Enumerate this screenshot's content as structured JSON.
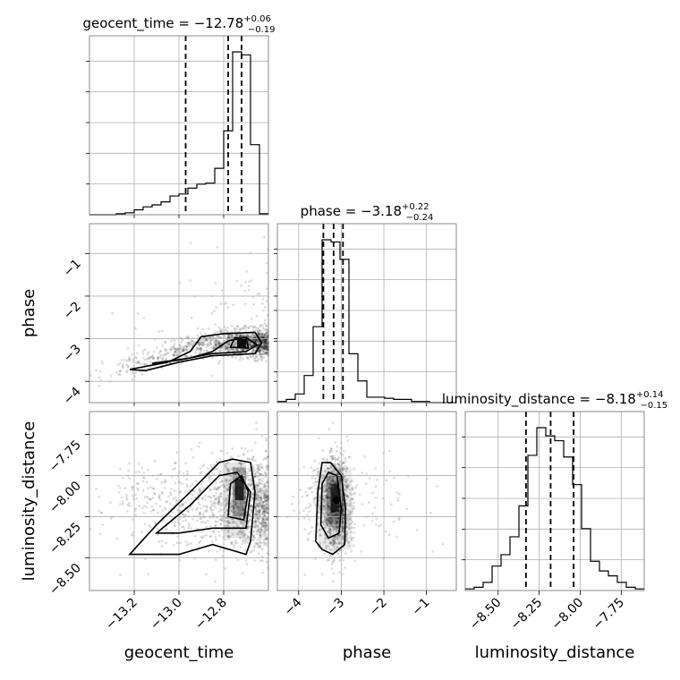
{
  "chart_data": {
    "type": "corner",
    "parameters": [
      "geocent_time",
      "phase",
      "luminosity_distance"
    ],
    "titles": [
      {
        "main": "geocent_time = −12.78",
        "sup": "+0.06",
        "sub": "−0.19"
      },
      {
        "main": "phase = −3.18",
        "sup": "+0.22",
        "sub": "−0.24"
      },
      {
        "main": "luminosity_distance = −8.18",
        "sup": "+0.14",
        "sub": "−0.15"
      }
    ],
    "ranges": {
      "geocent_time": [
        -13.4,
        -12.6
      ],
      "phase": [
        -4.5,
        -0.3
      ],
      "luminosity_distance": [
        -8.7,
        -7.61
      ]
    },
    "ticks": {
      "geocent_time": [
        -13.2,
        -13.0,
        -12.8
      ],
      "phase": [
        -4,
        -3,
        -2,
        -1
      ],
      "luminosity_distance": [
        -8.5,
        -8.25,
        -8.0,
        -7.75
      ]
    },
    "tick_labels": {
      "geocent_time": [
        "−13.2",
        "−13.0",
        "−12.8"
      ],
      "phase": [
        "−4",
        "−3",
        "−2",
        "−1"
      ],
      "luminosity_distance": [
        "−8.50",
        "−8.25",
        "−8.00",
        "−7.75"
      ]
    },
    "quantiles": {
      "geocent_time": [
        -12.97,
        -12.78,
        -12.72
      ],
      "phase": [
        -3.42,
        -3.18,
        -2.96
      ],
      "luminosity_distance": [
        -8.33,
        -8.18,
        -8.04
      ]
    },
    "histograms": {
      "geocent_time": {
        "edges": [
          -13.4,
          -13.36,
          -13.32,
          -13.28,
          -13.24,
          -13.2,
          -13.16,
          -13.12,
          -13.08,
          -13.04,
          -13.0,
          -12.96,
          -12.92,
          -12.88,
          -12.84,
          -12.8,
          -12.76,
          -12.72,
          -12.68,
          -12.64,
          -12.6
        ],
        "counts": [
          0,
          0,
          0,
          1,
          2,
          5,
          8,
          10,
          13,
          19,
          21,
          27,
          31,
          32,
          47,
          85,
          165,
          162,
          71,
          1
        ]
      },
      "phase": {
        "edges": [
          -4.5,
          -4.29,
          -4.08,
          -3.87,
          -3.66,
          -3.45,
          -3.24,
          -3.03,
          -2.82,
          -2.61,
          -2.4,
          -2.19,
          -1.98,
          -1.77,
          -1.56,
          -1.35,
          -1.14,
          -0.93,
          -0.72,
          -0.51,
          -0.3
        ],
        "counts": [
          1,
          3,
          8,
          25,
          70,
          150,
          148,
          132,
          45,
          20,
          5,
          5,
          4,
          3,
          3,
          1,
          1,
          0,
          0,
          0
        ]
      },
      "luminosity_distance": {
        "edges": [
          -8.7,
          -8.6455,
          -8.591,
          -8.5365,
          -8.482,
          -8.4275,
          -8.373,
          -8.3185,
          -8.264,
          -8.2095,
          -8.155,
          -8.1005,
          -8.046,
          -7.9915,
          -7.937,
          -7.8825,
          -7.828,
          -7.7735,
          -7.719,
          -7.6645,
          -7.61
        ],
        "counts": [
          1,
          2,
          5,
          15,
          22,
          33,
          52,
          83,
          100,
          95,
          92,
          82,
          65,
          38,
          18,
          12,
          9,
          5,
          2,
          1
        ]
      }
    },
    "scatter_regions": {
      "phase_vs_geocent_time": {
        "mode": [
          -12.73,
          -3.1
        ]
      },
      "luminosity_distance_vs_geocent_time": {
        "mode": [
          -12.74,
          -8.08
        ]
      },
      "luminosity_distance_vs_phase": {
        "mode": [
          -3.1,
          -8.15
        ]
      }
    },
    "contour_levels": [
      "inner",
      "outer"
    ],
    "grid": true,
    "legend": "none"
  }
}
